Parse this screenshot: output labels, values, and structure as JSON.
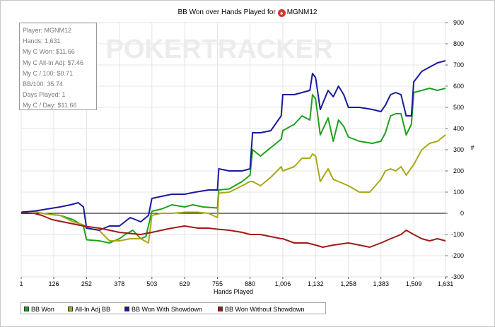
{
  "title": {
    "prefix": "BB Won over Hands Played for",
    "player": "MGNM12",
    "icon": "pokerstars-spade-icon"
  },
  "watermark": {
    "text": "POKERTRACKER"
  },
  "info_box": {
    "lines": [
      "Player: MGNM12",
      "Hands: 1,631",
      "My C Won: $11.66",
      "My C All-In Adj: $7.46",
      "My C / 100: $0.71",
      "BB/100: 35.74",
      "Days Played: 1",
      "My C / Day: $11.66"
    ]
  },
  "legend": {
    "items": [
      {
        "label": "BB Won",
        "color": "#1fa01f"
      },
      {
        "label": "All-In Adj BB",
        "color": "#a8a81a"
      },
      {
        "label": "BB Won With Showdown",
        "color": "#1a1aa0"
      },
      {
        "label": "BB Won Without Showdown",
        "color": "#a01a1a"
      }
    ]
  },
  "chart_data": {
    "type": "line",
    "title": "BB Won over Hands Played for MGNM12",
    "xlabel": "Hands Played",
    "ylabel": "#",
    "xlim": [
      1,
      1631
    ],
    "ylim": [
      -300,
      900
    ],
    "x_ticks": [
      "1",
      "126",
      "252",
      "378",
      "503",
      "629",
      "755",
      "880",
      "1,006",
      "1,132",
      "1,258",
      "1,383",
      "1,509",
      "1,631"
    ],
    "y_ticks": [
      "-300",
      "-200",
      "-100",
      "0",
      "100",
      "200",
      "300",
      "400",
      "500",
      "600",
      "700",
      "800",
      "900"
    ],
    "grid": true,
    "legend_position": "bottom",
    "series": [
      {
        "name": "BB Won",
        "color": "#1fa01f",
        "points": [
          [
            1,
            5
          ],
          [
            50,
            10
          ],
          [
            80,
            0
          ],
          [
            110,
            -5
          ],
          [
            150,
            -10
          ],
          [
            200,
            -30
          ],
          [
            240,
            -60
          ],
          [
            252,
            -125
          ],
          [
            300,
            -130
          ],
          [
            340,
            -140
          ],
          [
            378,
            -120
          ],
          [
            400,
            -100
          ],
          [
            430,
            -80
          ],
          [
            460,
            -120
          ],
          [
            480,
            -110
          ],
          [
            503,
            10
          ],
          [
            540,
            20
          ],
          [
            580,
            40
          ],
          [
            629,
            30
          ],
          [
            660,
            40
          ],
          [
            700,
            30
          ],
          [
            755,
            25
          ],
          [
            760,
            110
          ],
          [
            800,
            115
          ],
          [
            850,
            150
          ],
          [
            880,
            180
          ],
          [
            890,
            300
          ],
          [
            920,
            270
          ],
          [
            960,
            310
          ],
          [
            1000,
            350
          ],
          [
            1006,
            390
          ],
          [
            1050,
            420
          ],
          [
            1080,
            460
          ],
          [
            1110,
            440
          ],
          [
            1120,
            560
          ],
          [
            1132,
            540
          ],
          [
            1150,
            370
          ],
          [
            1180,
            450
          ],
          [
            1200,
            340
          ],
          [
            1220,
            440
          ],
          [
            1240,
            410
          ],
          [
            1258,
            360
          ],
          [
            1300,
            340
          ],
          [
            1350,
            330
          ],
          [
            1383,
            340
          ],
          [
            1400,
            380
          ],
          [
            1420,
            460
          ],
          [
            1440,
            470
          ],
          [
            1460,
            470
          ],
          [
            1480,
            370
          ],
          [
            1500,
            420
          ],
          [
            1509,
            570
          ],
          [
            1540,
            580
          ],
          [
            1570,
            590
          ],
          [
            1600,
            580
          ],
          [
            1631,
            590
          ]
        ]
      },
      {
        "name": "All-In Adj BB",
        "color": "#a8a81a",
        "points": [
          [
            1,
            5
          ],
          [
            50,
            10
          ],
          [
            80,
            0
          ],
          [
            110,
            -5
          ],
          [
            150,
            -10
          ],
          [
            200,
            -40
          ],
          [
            240,
            -55
          ],
          [
            252,
            -70
          ],
          [
            300,
            -80
          ],
          [
            340,
            -130
          ],
          [
            378,
            -130
          ],
          [
            420,
            -120
          ],
          [
            460,
            -120
          ],
          [
            490,
            -140
          ],
          [
            503,
            -10
          ],
          [
            540,
            0
          ],
          [
            580,
            0
          ],
          [
            629,
            5
          ],
          [
            680,
            5
          ],
          [
            720,
            0
          ],
          [
            755,
            -20
          ],
          [
            760,
            95
          ],
          [
            800,
            100
          ],
          [
            850,
            130
          ],
          [
            880,
            150
          ],
          [
            890,
            150
          ],
          [
            920,
            130
          ],
          [
            960,
            170
          ],
          [
            1000,
            220
          ],
          [
            1006,
            200
          ],
          [
            1050,
            220
          ],
          [
            1080,
            260
          ],
          [
            1110,
            260
          ],
          [
            1120,
            280
          ],
          [
            1132,
            270
          ],
          [
            1150,
            150
          ],
          [
            1180,
            210
          ],
          [
            1200,
            160
          ],
          [
            1220,
            150
          ],
          [
            1258,
            130
          ],
          [
            1300,
            100
          ],
          [
            1340,
            100
          ],
          [
            1383,
            160
          ],
          [
            1400,
            200
          ],
          [
            1420,
            210
          ],
          [
            1440,
            200
          ],
          [
            1460,
            220
          ],
          [
            1480,
            180
          ],
          [
            1509,
            230
          ],
          [
            1540,
            300
          ],
          [
            1570,
            330
          ],
          [
            1600,
            340
          ],
          [
            1631,
            370
          ]
        ]
      },
      {
        "name": "BB Won With Showdown",
        "color": "#1a1aa0",
        "points": [
          [
            1,
            5
          ],
          [
            50,
            10
          ],
          [
            100,
            20
          ],
          [
            150,
            30
          ],
          [
            190,
            40
          ],
          [
            220,
            50
          ],
          [
            240,
            30
          ],
          [
            252,
            -70
          ],
          [
            300,
            -80
          ],
          [
            340,
            -60
          ],
          [
            378,
            -60
          ],
          [
            420,
            -20
          ],
          [
            460,
            -40
          ],
          [
            490,
            -10
          ],
          [
            503,
            70
          ],
          [
            540,
            80
          ],
          [
            580,
            90
          ],
          [
            629,
            90
          ],
          [
            670,
            100
          ],
          [
            720,
            110
          ],
          [
            755,
            110
          ],
          [
            760,
            210
          ],
          [
            800,
            200
          ],
          [
            850,
            200
          ],
          [
            880,
            210
          ],
          [
            890,
            380
          ],
          [
            920,
            380
          ],
          [
            960,
            390
          ],
          [
            1000,
            460
          ],
          [
            1006,
            560
          ],
          [
            1050,
            560
          ],
          [
            1080,
            570
          ],
          [
            1110,
            580
          ],
          [
            1120,
            660
          ],
          [
            1132,
            640
          ],
          [
            1150,
            490
          ],
          [
            1180,
            580
          ],
          [
            1200,
            550
          ],
          [
            1220,
            600
          ],
          [
            1240,
            560
          ],
          [
            1258,
            500
          ],
          [
            1300,
            500
          ],
          [
            1350,
            490
          ],
          [
            1383,
            480
          ],
          [
            1400,
            510
          ],
          [
            1420,
            560
          ],
          [
            1440,
            570
          ],
          [
            1460,
            560
          ],
          [
            1480,
            460
          ],
          [
            1500,
            460
          ],
          [
            1509,
            620
          ],
          [
            1540,
            670
          ],
          [
            1570,
            690
          ],
          [
            1600,
            710
          ],
          [
            1631,
            720
          ]
        ]
      },
      {
        "name": "BB Won Without Showdown",
        "color": "#a01a1a",
        "points": [
          [
            1,
            0
          ],
          [
            50,
            0
          ],
          [
            80,
            -10
          ],
          [
            120,
            -30
          ],
          [
            160,
            -40
          ],
          [
            200,
            -50
          ],
          [
            240,
            -60
          ],
          [
            300,
            -70
          ],
          [
            340,
            -80
          ],
          [
            378,
            -90
          ],
          [
            420,
            -95
          ],
          [
            460,
            -100
          ],
          [
            503,
            -90
          ],
          [
            540,
            -80
          ],
          [
            580,
            -70
          ],
          [
            629,
            -60
          ],
          [
            680,
            -70
          ],
          [
            720,
            -70
          ],
          [
            755,
            -75
          ],
          [
            800,
            -80
          ],
          [
            850,
            -90
          ],
          [
            880,
            -100
          ],
          [
            920,
            -100
          ],
          [
            960,
            -110
          ],
          [
            1000,
            -120
          ],
          [
            1006,
            -120
          ],
          [
            1050,
            -140
          ],
          [
            1100,
            -140
          ],
          [
            1132,
            -150
          ],
          [
            1160,
            -160
          ],
          [
            1200,
            -150
          ],
          [
            1258,
            -140
          ],
          [
            1300,
            -150
          ],
          [
            1340,
            -160
          ],
          [
            1383,
            -140
          ],
          [
            1420,
            -120
          ],
          [
            1460,
            -100
          ],
          [
            1480,
            -80
          ],
          [
            1509,
            -100
          ],
          [
            1540,
            -120
          ],
          [
            1570,
            -130
          ],
          [
            1600,
            -120
          ],
          [
            1631,
            -130
          ]
        ]
      }
    ]
  }
}
